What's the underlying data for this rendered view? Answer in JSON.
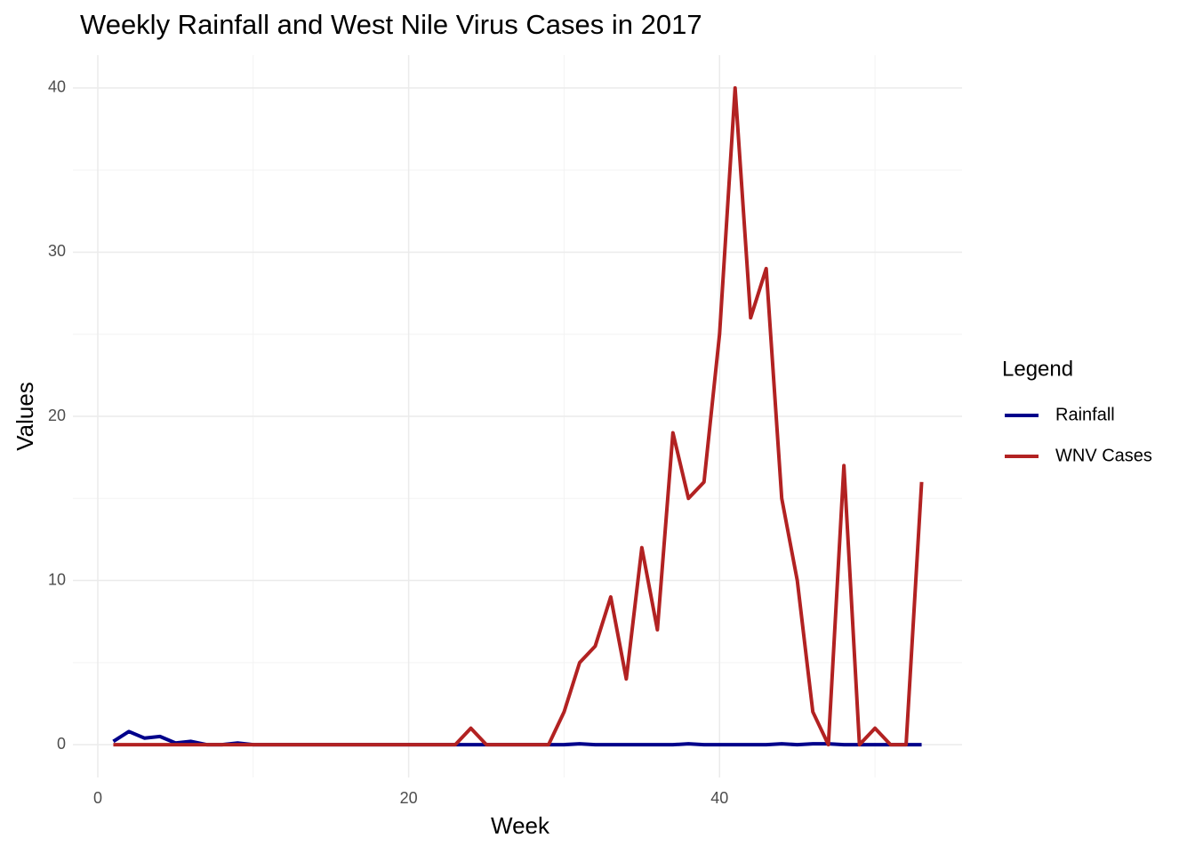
{
  "chart_data": {
    "type": "line",
    "title": "Weekly Rainfall and West Nile Virus Cases in 2017",
    "x_label": "Week",
    "y_label": "Values",
    "legend_title": "Legend",
    "x": [
      1,
      2,
      3,
      4,
      5,
      6,
      7,
      8,
      9,
      10,
      11,
      12,
      13,
      14,
      15,
      16,
      17,
      18,
      19,
      20,
      21,
      22,
      23,
      24,
      25,
      26,
      27,
      28,
      29,
      30,
      31,
      32,
      33,
      34,
      35,
      36,
      37,
      38,
      39,
      40,
      41,
      42,
      43,
      44,
      45,
      46,
      47,
      48,
      49,
      50,
      51,
      52,
      53
    ],
    "series": [
      {
        "name": "Rainfall",
        "color": "#00008b",
        "values": [
          0.2,
          0.8,
          0.4,
          0.5,
          0.1,
          0.2,
          0,
          0,
          0.1,
          0,
          0,
          0,
          0,
          0,
          0,
          0,
          0,
          0,
          0,
          0,
          0,
          0,
          0,
          0,
          0,
          0,
          0,
          0,
          0,
          0,
          0.05,
          0,
          0,
          0,
          0,
          0,
          0,
          0.05,
          0,
          0,
          0,
          0,
          0,
          0.05,
          0,
          0.05,
          0.05,
          0,
          0,
          0,
          0,
          0,
          0
        ]
      },
      {
        "name": "WNV Cases",
        "color": "#b22222",
        "values": [
          0,
          0,
          0,
          0,
          0,
          0,
          0,
          0,
          0,
          0,
          0,
          0,
          0,
          0,
          0,
          0,
          0,
          0,
          0,
          0,
          0,
          0,
          0,
          1,
          0,
          0,
          0,
          0,
          0,
          2,
          5,
          6,
          9,
          4,
          12,
          7,
          19,
          15,
          16,
          25,
          40,
          26,
          29,
          15,
          10,
          2,
          0,
          17,
          0,
          1,
          0,
          0,
          16
        ]
      }
    ],
    "xlim": [
      -1.6,
      55.6
    ],
    "xticks": [
      0,
      20,
      40
    ],
    "ylim": [
      -2,
      42
    ],
    "yticks": [
      0,
      10,
      20,
      30,
      40
    ],
    "grid": true,
    "legend": "right"
  }
}
